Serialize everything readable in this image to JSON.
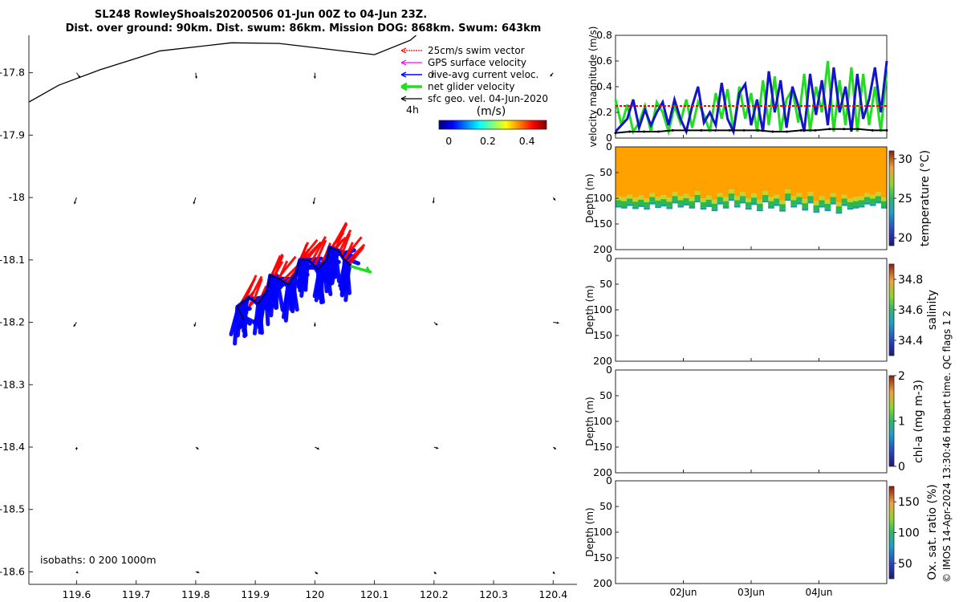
{
  "title_line1": "SL248 RowleyShoals20200506 01-Jun 00Z to 04-Jun 23Z.",
  "title_line2": "Dist. over ground: 90km. Dist. swum: 86km. Mission DOG: 868km. Swum: 643km",
  "footer": "© IMOS 14-Apr-2024 13:30:46 Hobart time. QC flags 1  2",
  "colors": {
    "track": "#000000",
    "red_vec": "#ff0000",
    "blue_vec": "#0000ff",
    "green": "#22dd22",
    "magenta": "#ff00ff",
    "dark_blue": "#1414c8",
    "orange": "#ffa200"
  },
  "chart_data": [
    {
      "type": "map",
      "name": "glider track map",
      "xlim": [
        119.52,
        120.44
      ],
      "ylim": [
        -18.62,
        -17.74
      ],
      "xticks": [
        "119.6",
        "119.7",
        "119.8",
        "119.9",
        "120",
        "120.1",
        "120.2",
        "120.3",
        "120.4"
      ],
      "xtick_values": [
        119.6,
        119.7,
        119.8,
        119.9,
        120.0,
        120.1,
        120.2,
        120.3,
        120.4
      ],
      "yticks": [
        "-17.8",
        "-17.9",
        "-18",
        "-18.1",
        "-18.2",
        "-18.3",
        "-18.4",
        "-18.5",
        "-18.6"
      ],
      "ytick_values": [
        -17.8,
        -17.9,
        -18.0,
        -18.1,
        -18.2,
        -18.3,
        -18.4,
        -18.5,
        -18.6
      ],
      "isobath_label": "isobaths: 0   200  1000m",
      "time_step_label": "4h",
      "coastline": [
        [
          119.52,
          -17.847
        ],
        [
          119.57,
          -17.82
        ],
        [
          119.64,
          -17.795
        ],
        [
          119.74,
          -17.765
        ],
        [
          119.86,
          -17.752
        ],
        [
          119.94,
          -17.753
        ],
        [
          120.1,
          -17.771
        ],
        [
          120.16,
          -17.748
        ],
        [
          120.17,
          -17.74
        ]
      ],
      "glider_path": [
        [
          119.88,
          -18.195
        ],
        [
          119.87,
          -18.175
        ],
        [
          119.89,
          -18.16
        ],
        [
          119.905,
          -18.17
        ],
        [
          119.92,
          -18.15
        ],
        [
          119.925,
          -18.125
        ],
        [
          119.94,
          -18.13
        ],
        [
          119.955,
          -18.14
        ],
        [
          119.97,
          -18.12
        ],
        [
          119.975,
          -18.1
        ],
        [
          119.99,
          -18.1
        ],
        [
          120.005,
          -18.115
        ],
        [
          120.02,
          -18.1
        ],
        [
          120.025,
          -18.08
        ],
        [
          120.04,
          -18.085
        ],
        [
          120.05,
          -18.1
        ],
        [
          120.06,
          -18.11
        ]
      ],
      "glider_velocity_arrow": [
        [
          120.06,
          -18.11
        ],
        [
          120.095,
          -18.12
        ]
      ],
      "legend": {
        "entries": [
          "25cm/s swim vector",
          "GPS surface velocity",
          "dive-avg current veloc.",
          "net glider velocity",
          "sfc geo. vel. 04-Jun-2020"
        ],
        "colorbar_label": "(m/s)",
        "colorbar_ticks": [
          "0",
          "0.2",
          "0.4"
        ],
        "colorbar_range": [
          -0.05,
          0.5
        ]
      },
      "surface_vectors": [
        {
          "lon": 119.6,
          "lat": -17.8,
          "u": 0.005,
          "v": -0.007
        },
        {
          "lon": 119.8,
          "lat": -17.8,
          "u": 0.001,
          "v": -0.008
        },
        {
          "lon": 120.0,
          "lat": -17.8,
          "u": 0.0,
          "v": -0.008
        },
        {
          "lon": 120.2,
          "lat": -17.8,
          "u": -0.003,
          "v": -0.006
        },
        {
          "lon": 120.4,
          "lat": -17.8,
          "u": -0.004,
          "v": -0.005
        },
        {
          "lon": 119.6,
          "lat": -18.0,
          "u": -0.003,
          "v": -0.009
        },
        {
          "lon": 119.8,
          "lat": -18.0,
          "u": -0.003,
          "v": -0.009
        },
        {
          "lon": 120.0,
          "lat": -18.0,
          "u": -0.002,
          "v": -0.009
        },
        {
          "lon": 120.2,
          "lat": -18.0,
          "u": -0.001,
          "v": -0.008
        },
        {
          "lon": 120.4,
          "lat": -18.0,
          "u": 0.003,
          "v": -0.004
        },
        {
          "lon": 119.6,
          "lat": -18.2,
          "u": -0.004,
          "v": -0.006
        },
        {
          "lon": 119.8,
          "lat": -18.2,
          "u": -0.002,
          "v": -0.006
        },
        {
          "lon": 120.0,
          "lat": -18.2,
          "u": 0.0,
          "v": -0.006
        },
        {
          "lon": 120.2,
          "lat": -18.2,
          "u": 0.005,
          "v": -0.004
        },
        {
          "lon": 120.4,
          "lat": -18.2,
          "u": 0.008,
          "v": -0.001
        },
        {
          "lon": 119.6,
          "lat": -18.4,
          "u": 0.0,
          "v": -0.004
        },
        {
          "lon": 119.8,
          "lat": -18.4,
          "u": 0.004,
          "v": -0.003
        },
        {
          "lon": 120.0,
          "lat": -18.4,
          "u": 0.006,
          "v": -0.003
        },
        {
          "lon": 120.2,
          "lat": -18.4,
          "u": 0.006,
          "v": -0.002
        },
        {
          "lon": 120.4,
          "lat": -18.4,
          "u": 0.004,
          "v": -0.003
        },
        {
          "lon": 119.6,
          "lat": -18.6,
          "u": 0.002,
          "v": -0.002
        },
        {
          "lon": 119.8,
          "lat": -18.6,
          "u": 0.005,
          "v": -0.001
        },
        {
          "lon": 120.0,
          "lat": -18.6,
          "u": 0.004,
          "v": -0.003
        },
        {
          "lon": 120.2,
          "lat": -18.6,
          "u": 0.003,
          "v": -0.003
        },
        {
          "lon": 120.4,
          "lat": -18.6,
          "u": 0.002,
          "v": -0.003
        }
      ]
    },
    {
      "type": "line",
      "name": "velocity magnitude",
      "ylabel": "velocity magnitude (m/s)",
      "ylim": [
        0,
        0.8
      ],
      "yticks": [
        "0",
        "0.2",
        "0.4",
        "0.6",
        "0.8"
      ],
      "ytick_values": [
        0,
        0.2,
        0.4,
        0.6,
        0.8
      ],
      "xlim": [
        0,
        4
      ],
      "series": [
        {
          "name": "green glider speed",
          "color": "#22dd22",
          "values": [
            0.3,
            0.1,
            0.26,
            0.05,
            0.12,
            0.25,
            0.05,
            0.28,
            0.2,
            0.05,
            0.25,
            0.12,
            0.3,
            0.08,
            0.28,
            0.18,
            0.05,
            0.35,
            0.15,
            0.38,
            0.05,
            0.4,
            0.15,
            0.35,
            0.05,
            0.45,
            0.1,
            0.48,
            0.05,
            0.3,
            0.38,
            0.12,
            0.5,
            0.05,
            0.4,
            0.2,
            0.6,
            0.05,
            0.45,
            0.1,
            0.55,
            0.05,
            0.5,
            0.1,
            0.4,
            0.05,
            0.52
          ]
        },
        {
          "name": "blue current",
          "color": "#1414c8",
          "values": [
            0.05,
            0.1,
            0.15,
            0.3,
            0.08,
            0.22,
            0.1,
            0.2,
            0.28,
            0.1,
            0.3,
            0.15,
            0.05,
            0.25,
            0.4,
            0.12,
            0.2,
            0.1,
            0.43,
            0.15,
            0.05,
            0.35,
            0.42,
            0.1,
            0.3,
            0.05,
            0.52,
            0.2,
            0.45,
            0.08,
            0.4,
            0.25,
            0.05,
            0.5,
            0.18,
            0.45,
            0.1,
            0.55,
            0.2,
            0.4,
            0.05,
            0.5,
            0.15,
            0.3,
            0.55,
            0.2,
            0.6
          ]
        },
        {
          "name": "red swim vector",
          "color": "#ff0000",
          "values": [
            0.25,
            0.25
          ]
        },
        {
          "name": "black sfc geo",
          "color": "#000000",
          "values": [
            0.04,
            0.05,
            0.05,
            0.05,
            0.06,
            0.06,
            0.06,
            0.06,
            0.06,
            0.06,
            0.06,
            0.05,
            0.05,
            0.06,
            0.06,
            0.07,
            0.07,
            0.07,
            0.06,
            0.06
          ]
        }
      ]
    },
    {
      "type": "heatmap",
      "name": "temperature section",
      "ylabel": "Depth (m)",
      "colorbar_label": "temperature (°C)",
      "ylim": [
        0,
        200
      ],
      "yticks": [
        "0",
        "50",
        "100",
        "150",
        "200"
      ],
      "ytick_values": [
        0,
        50,
        100,
        150,
        200
      ],
      "colorbar_ticks": [
        "20",
        "25",
        "30"
      ],
      "colorbar_values": [
        20,
        25,
        30
      ],
      "colorbar_range": [
        19,
        31
      ],
      "surface_temp": 28.5,
      "bottom_depths": [
        118,
        120,
        115,
        121,
        117,
        122,
        112,
        119,
        116,
        121,
        110,
        118,
        114,
        120,
        108,
        122,
        117,
        125,
        112,
        120,
        105,
        118,
        110,
        122,
        113,
        125,
        108,
        120,
        115,
        126,
        105,
        118,
        112,
        124,
        110,
        128,
        118,
        125,
        112,
        130,
        115,
        122,
        120,
        118,
        112,
        115,
        110,
        120
      ]
    },
    {
      "type": "heatmap",
      "name": "salinity section",
      "ylabel": "Depth (m)",
      "colorbar_label": "salinity",
      "ylim": [
        0,
        200
      ],
      "yticks": [
        "0",
        "50",
        "100",
        "150",
        "200"
      ],
      "ytick_values": [
        0,
        50,
        100,
        150,
        200
      ],
      "colorbar_ticks": [
        "34.4",
        "34.6",
        "34.8"
      ],
      "colorbar_values": [
        34.4,
        34.6,
        34.8
      ],
      "colorbar_range": [
        34.3,
        34.9
      ]
    },
    {
      "type": "heatmap",
      "name": "chlorophyll section",
      "ylabel": "Depth (m)",
      "colorbar_label": "chl-a (mg m-3)",
      "ylim": [
        0,
        200
      ],
      "yticks": [
        "0",
        "50",
        "100",
        "150",
        "200"
      ],
      "ytick_values": [
        0,
        50,
        100,
        150,
        200
      ],
      "colorbar_ticks": [
        "0",
        "1",
        "2"
      ],
      "colorbar_values": [
        0,
        1,
        2
      ],
      "colorbar_range": [
        0,
        2
      ]
    },
    {
      "type": "heatmap",
      "name": "oxygen saturation section",
      "ylabel": "Depth (m)",
      "colorbar_label": "Ox. sat. ratio (%)",
      "ylim": [
        0,
        200
      ],
      "yticks": [
        "0",
        "50",
        "100",
        "150",
        "200"
      ],
      "ytick_values": [
        0,
        50,
        100,
        150,
        200
      ],
      "colorbar_ticks": [
        "50",
        "100",
        "150"
      ],
      "colorbar_values": [
        50,
        100,
        150
      ],
      "colorbar_range": [
        25,
        175
      ],
      "xlim": [
        0,
        4
      ],
      "xticks": [
        "02Jun",
        "03Jun",
        "04Jun"
      ],
      "xtick_values": [
        1,
        2,
        3
      ]
    }
  ]
}
